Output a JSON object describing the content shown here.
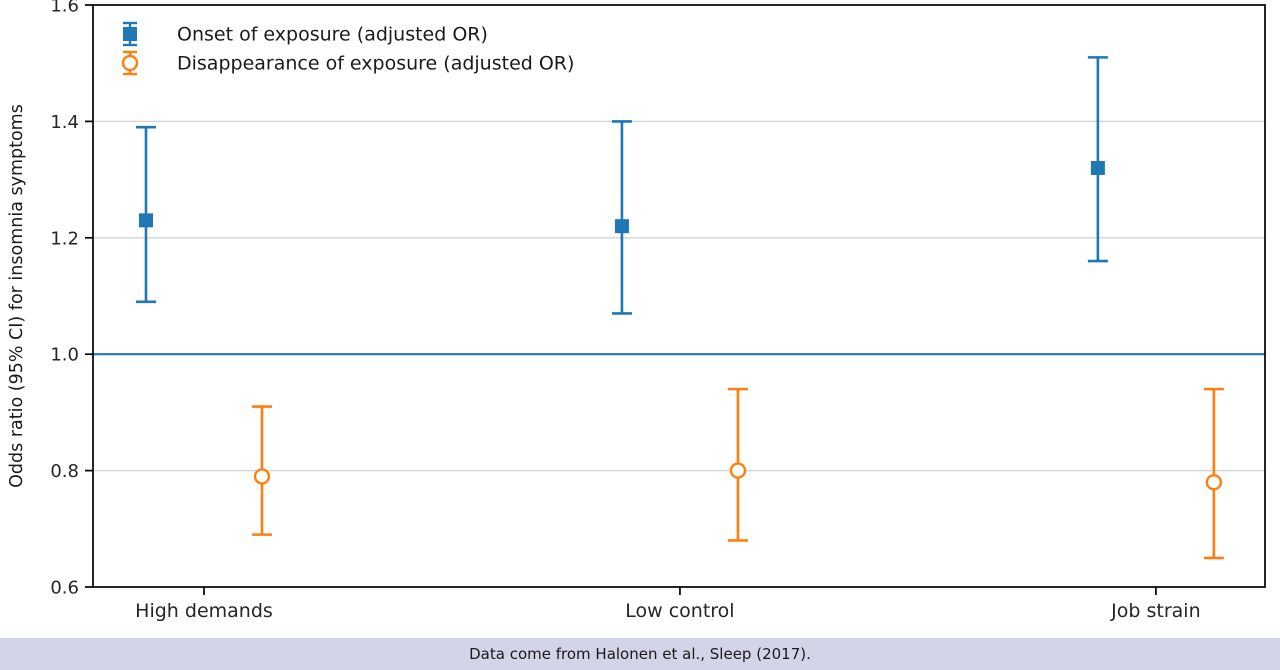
{
  "chart_data": {
    "type": "scatter",
    "subtype": "errorbar",
    "title": "",
    "xlabel": "",
    "ylabel": "Odds ratio (95% CI) for insomnia symptoms",
    "categories": [
      "High demands",
      "Low control",
      "Job strain"
    ],
    "ylim": [
      0.6,
      1.6
    ],
    "yticks": [
      0.6,
      0.8,
      1.0,
      1.2,
      1.4,
      1.6
    ],
    "ytick_labels": [
      "0.6",
      "0.8",
      "1.0",
      "1.2",
      "1.4",
      "1.6"
    ],
    "grid": "horizontal",
    "reference_line_y": 1.0,
    "legend_position": "upper-left",
    "series": [
      {
        "name": "Onset of exposure (adjusted OR)",
        "marker": "filled-square",
        "color": "#1f77b4",
        "values": [
          1.23,
          1.22,
          1.32
        ],
        "ci_low": [
          1.09,
          1.07,
          1.16
        ],
        "ci_high": [
          1.39,
          1.4,
          1.51
        ]
      },
      {
        "name": "Disappearance of exposure (adjusted OR)",
        "marker": "open-circle",
        "color": "#ff7f0e",
        "values": [
          0.79,
          0.8,
          0.78
        ],
        "ci_low": [
          0.69,
          0.68,
          0.65
        ],
        "ci_high": [
          0.91,
          0.94,
          0.94
        ]
      }
    ]
  },
  "caption": {
    "text": "Data come from Halonen et al., Sleep (2017)."
  },
  "colors": {
    "reference_line": "#1f77b4",
    "grid": "#d4d4d4",
    "axis": "#000000",
    "tick_label": "#262626",
    "caption_bg": "#d2d4e8",
    "background": "#ffffff"
  }
}
